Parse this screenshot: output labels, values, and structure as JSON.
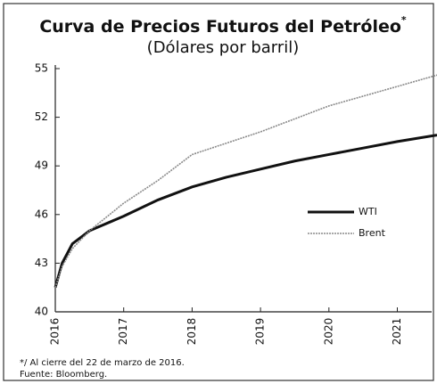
{
  "chart_data": {
    "type": "line",
    "title": "Curva de Precios Futuros del Petróleo",
    "title_note_mark": "*",
    "subtitle": "(Dólares por barril)",
    "x": [
      2016,
      2016.1,
      2016.25,
      2016.5,
      2017,
      2017.5,
      2018,
      2018.5,
      2019,
      2019.5,
      2020,
      2020.5,
      2021,
      2021.58
    ],
    "series": [
      {
        "name": "WTI",
        "color": "#111111",
        "values": [
          41.5,
          43.0,
          44.2,
          45.0,
          45.9,
          46.9,
          47.7,
          48.3,
          48.8,
          49.3,
          49.7,
          50.1,
          50.5,
          50.9
        ]
      },
      {
        "name": "Brent",
        "color": "#8a8a8a",
        "values": [
          41.5,
          42.8,
          43.9,
          45.0,
          46.7,
          48.1,
          49.7,
          50.4,
          51.1,
          51.9,
          52.7,
          53.3,
          53.9,
          54.6
        ]
      }
    ],
    "xlim": [
      2016,
      2021.58
    ],
    "xticks": [
      2016,
      2017,
      2018,
      2019,
      2020,
      2021
    ],
    "ylim": [
      40,
      55
    ],
    "yticks": [
      40,
      43,
      46,
      49,
      52,
      55
    ],
    "legend": "center-right",
    "notes": [
      "*/ Al cierre del 22 de marzo de 2016.",
      "Fuente: Bloomberg."
    ]
  }
}
